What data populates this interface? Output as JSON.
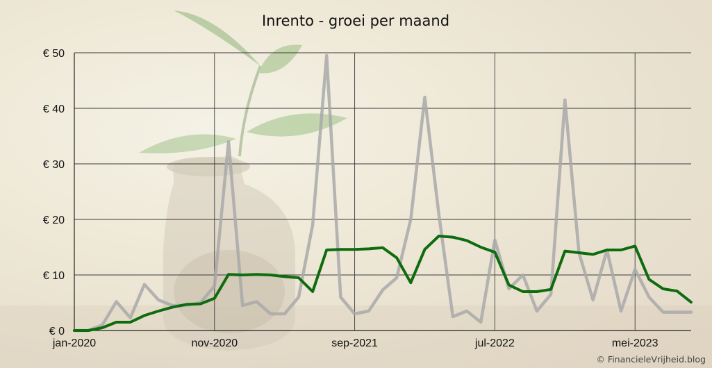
{
  "chart_data": {
    "type": "line",
    "title": "Inrento - groei per maand",
    "x_tick_labels": [
      "jan-2020",
      "nov-2020",
      "sep-2021",
      "jul-2022",
      "mei-2023"
    ],
    "y_tick_labels": [
      "€ 0",
      "€ 10",
      "€ 20",
      "€ 30",
      "€ 40",
      "€ 50"
    ],
    "ylim": [
      0,
      50
    ],
    "grid": true,
    "series": [
      {
        "color": "#a9a9a9",
        "values": [
          0,
          0,
          1,
          5.2,
          2.3,
          8.3,
          5.5,
          4.5,
          4.5,
          5,
          8,
          34,
          4.5,
          5.2,
          3,
          3,
          6,
          19,
          49.5,
          6,
          3,
          3.5,
          7.3,
          9.5,
          20,
          42,
          21,
          2.5,
          3.5,
          1.5,
          16.3,
          7.5,
          10,
          3.5,
          6.5,
          41.5,
          14,
          5.5,
          14.5,
          3.5,
          11,
          6,
          3.3,
          3.3,
          3.3
        ]
      },
      {
        "color": "#0e6b0e",
        "values": [
          0,
          0,
          0.5,
          1.5,
          1.5,
          2.7,
          3.5,
          4.2,
          4.7,
          4.8,
          5.8,
          10.1,
          10,
          10.1,
          10,
          9.7,
          9.5,
          7,
          14.5,
          14.6,
          14.6,
          14.7,
          14.9,
          13.1,
          8.6,
          14.6,
          17,
          16.8,
          16.2,
          15,
          14.1,
          8.2,
          7,
          7,
          7.4,
          14.3,
          14,
          13.7,
          14.5,
          14.5,
          15.2,
          9.2,
          7.5,
          7.1,
          5.1
        ]
      }
    ]
  },
  "credit": "© FinancieleVrijheid.blog"
}
